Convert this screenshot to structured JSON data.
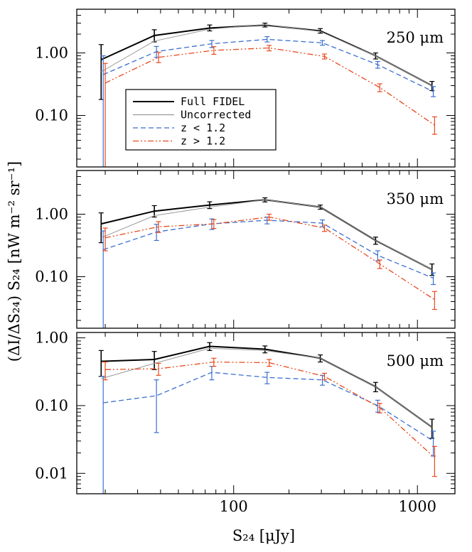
{
  "chart_data": [
    {
      "type": "line",
      "panel_label": "250 μm",
      "x_scale": "log",
      "y_scale": "log",
      "xlim": [
        14,
        1600
      ],
      "ylim": [
        0.015,
        5.0
      ],
      "y_ticks": [
        {
          "value": 1.0,
          "label": "1.00"
        },
        {
          "value": 0.1,
          "label": "0.10"
        }
      ],
      "legend": {
        "position": "lower-left",
        "entries": [
          {
            "label": "Full FIDEL",
            "color": "#000000",
            "dash": "solid"
          },
          {
            "label": "Uncorrected",
            "color": "#999999",
            "dash": "solid"
          },
          {
            "label": "z < 1.2",
            "color": "#3b6fd1",
            "dash": "dashed"
          },
          {
            "label": "z > 1.2",
            "color": "#e8481c",
            "dash": "dash-dot-dot"
          }
        ]
      },
      "series": [
        {
          "name": "Full FIDEL",
          "color": "#000000",
          "dash": "solid",
          "width": 2,
          "x": [
            19,
            37,
            74,
            148,
            296,
            592,
            1200
          ],
          "y": [
            0.78,
            1.9,
            2.5,
            2.8,
            2.25,
            0.9,
            0.3
          ],
          "err_lo": [
            0.6,
            0.4,
            0.25,
            0.2,
            0.18,
            0.1,
            0.05
          ],
          "err_hi": [
            0.58,
            0.45,
            0.3,
            0.2,
            0.2,
            0.1,
            0.05
          ]
        },
        {
          "name": "Uncorrected",
          "color": "#999999",
          "dash": "solid",
          "width": 1,
          "x": [
            19,
            37,
            74,
            148,
            296,
            592,
            1200
          ],
          "y": [
            0.5,
            1.55,
            2.4,
            2.85,
            2.2,
            0.9,
            0.3
          ]
        },
        {
          "name": "z < 1.2",
          "color": "#3b6fd1",
          "dash": "dashed",
          "width": 1.3,
          "x": [
            19.5,
            38,
            76,
            152,
            304,
            608,
            1220
          ],
          "y": [
            0.45,
            1.05,
            1.4,
            1.65,
            1.45,
            0.65,
            0.24
          ],
          "err_lo": [
            0.44,
            0.2,
            0.18,
            0.15,
            0.12,
            0.08,
            0.04
          ],
          "err_hi": [
            0.45,
            0.22,
            0.18,
            0.17,
            0.13,
            0.08,
            0.05
          ]
        },
        {
          "name": "z > 1.2",
          "color": "#e8481c",
          "dash": "dash-dot-dot",
          "width": 1.3,
          "x": [
            20,
            39,
            78,
            156,
            312,
            624,
            1240
          ],
          "y": [
            0.33,
            0.85,
            1.1,
            1.2,
            0.88,
            0.28,
            0.07
          ],
          "err_lo": [
            0.32,
            0.15,
            0.15,
            0.12,
            0.08,
            0.04,
            0.02
          ],
          "err_hi": [
            0.35,
            0.17,
            0.16,
            0.12,
            0.08,
            0.04,
            0.025
          ]
        }
      ]
    },
    {
      "type": "line",
      "panel_label": "350 μm",
      "x_scale": "log",
      "y_scale": "log",
      "xlim": [
        14,
        1600
      ],
      "ylim": [
        0.015,
        5.0
      ],
      "y_ticks": [
        {
          "value": 1.0,
          "label": "1.00"
        },
        {
          "value": 0.1,
          "label": "0.10"
        }
      ],
      "series": [
        {
          "name": "Full FIDEL",
          "color": "#000000",
          "dash": "solid",
          "width": 2,
          "x": [
            19,
            37,
            74,
            148,
            296,
            592,
            1200
          ],
          "y": [
            0.7,
            1.12,
            1.4,
            1.7,
            1.3,
            0.38,
            0.13
          ],
          "err_lo": [
            0.35,
            0.22,
            0.17,
            0.13,
            0.1,
            0.05,
            0.025
          ],
          "err_hi": [
            0.35,
            0.25,
            0.18,
            0.13,
            0.1,
            0.05,
            0.03
          ]
        },
        {
          "name": "Uncorrected",
          "color": "#999999",
          "dash": "solid",
          "width": 1,
          "x": [
            19,
            37,
            74,
            148,
            296,
            592,
            1200
          ],
          "y": [
            0.42,
            0.95,
            1.3,
            1.7,
            1.3,
            0.38,
            0.13
          ]
        },
        {
          "name": "z < 1.2",
          "color": "#3b6fd1",
          "dash": "dashed",
          "width": 1.3,
          "x": [
            19.5,
            38,
            76,
            152,
            304,
            608,
            1220
          ],
          "y": [
            0.27,
            0.52,
            0.7,
            0.8,
            0.72,
            0.22,
            0.095
          ],
          "err_lo": [
            0.26,
            0.14,
            0.13,
            0.1,
            0.09,
            0.04,
            0.02
          ],
          "err_hi": [
            0.27,
            0.17,
            0.14,
            0.1,
            0.09,
            0.04,
            0.02
          ]
        },
        {
          "name": "z > 1.2",
          "color": "#e8481c",
          "dash": "dash-dot-dot",
          "width": 1.3,
          "x": [
            20,
            39,
            78,
            156,
            312,
            624,
            1240
          ],
          "y": [
            0.42,
            0.63,
            0.7,
            0.9,
            0.6,
            0.16,
            0.043
          ],
          "err_lo": [
            0.16,
            0.12,
            0.11,
            0.1,
            0.07,
            0.025,
            0.013
          ],
          "err_hi": [
            0.18,
            0.13,
            0.12,
            0.1,
            0.07,
            0.025,
            0.015
          ]
        }
      ]
    },
    {
      "type": "line",
      "panel_label": "500 μm",
      "x_scale": "log",
      "y_scale": "log",
      "xlim": [
        14,
        1600
      ],
      "ylim": [
        0.005,
        1.2
      ],
      "x_ticks": [
        {
          "value": 100,
          "label": "100"
        },
        {
          "value": 1000,
          "label": "1000"
        }
      ],
      "y_ticks": [
        {
          "value": 1.0,
          "label": "1.00"
        },
        {
          "value": 0.1,
          "label": "0.10"
        },
        {
          "value": 0.01,
          "label": "0.01"
        }
      ],
      "xlabel": "S₂₄ [μJy]",
      "series": [
        {
          "name": "Full FIDEL",
          "color": "#000000",
          "dash": "solid",
          "width": 2,
          "x": [
            19,
            37,
            74,
            148,
            296,
            592,
            1200
          ],
          "y": [
            0.45,
            0.48,
            0.75,
            0.68,
            0.5,
            0.19,
            0.048
          ],
          "err_lo": [
            0.18,
            0.14,
            0.1,
            0.08,
            0.06,
            0.03,
            0.015
          ],
          "err_hi": [
            0.2,
            0.15,
            0.1,
            0.08,
            0.06,
            0.03,
            0.015
          ]
        },
        {
          "name": "Uncorrected",
          "color": "#999999",
          "dash": "solid",
          "width": 1,
          "x": [
            19,
            37,
            74,
            148,
            296,
            592,
            1200
          ],
          "y": [
            0.25,
            0.42,
            0.7,
            0.65,
            0.5,
            0.19,
            0.048
          ]
        },
        {
          "name": "z < 1.2",
          "color": "#3b6fd1",
          "dash": "dashed",
          "width": 1.3,
          "x": [
            19.5,
            38,
            76,
            152,
            304,
            608,
            1220
          ],
          "y": [
            0.11,
            0.14,
            0.31,
            0.26,
            0.24,
            0.1,
            0.03
          ],
          "err_lo": [
            0.105,
            0.1,
            0.07,
            0.05,
            0.04,
            0.02,
            0.012
          ],
          "err_hi": [
            0.16,
            0.1,
            0.07,
            0.05,
            0.04,
            0.02,
            0.012
          ]
        },
        {
          "name": "z > 1.2",
          "color": "#e8481c",
          "dash": "dash-dot-dot",
          "width": 1.3,
          "x": [
            20,
            39,
            78,
            156,
            312,
            624,
            1240
          ],
          "y": [
            0.34,
            0.35,
            0.44,
            0.43,
            0.27,
            0.093,
            0.017
          ],
          "err_lo": [
            0.1,
            0.07,
            0.06,
            0.05,
            0.03,
            0.015,
            0.008
          ],
          "err_hi": [
            0.1,
            0.07,
            0.06,
            0.05,
            0.03,
            0.015,
            0.008
          ]
        }
      ]
    }
  ],
  "ylabel": "(ΔI/ΔS₂₄) S₂₄ [nW m⁻² sr⁻¹]"
}
